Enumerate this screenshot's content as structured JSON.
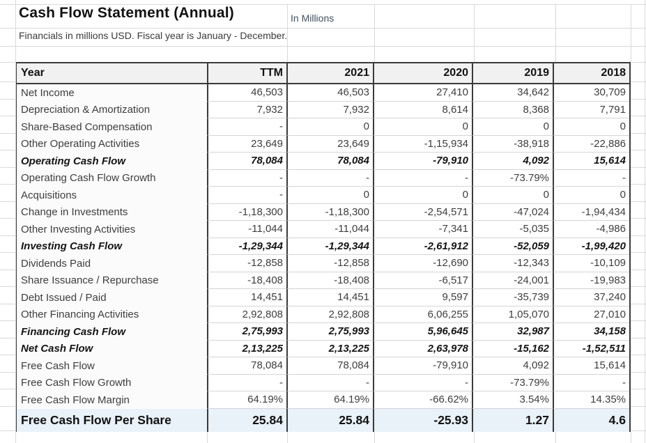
{
  "title": "Cash Flow Statement (Annual)",
  "unit_note": "In Millions",
  "subtitle": "Financials in millions USD. Fiscal year is January - December.",
  "colors": {
    "row_highlight": "#e9f1f9",
    "header_bg": "#f1f1f1",
    "grid_light": "#d9d9d9",
    "border_dark": "#3a3a3a"
  },
  "table": {
    "columns": [
      "Year",
      "TTM",
      "2021",
      "2020",
      "2019",
      "2018"
    ],
    "rows": [
      {
        "label": "Net Income",
        "style": "normal",
        "values": [
          "46,503",
          "46,503",
          "27,410",
          "34,642",
          "30,709"
        ]
      },
      {
        "label": "Depreciation & Amortization",
        "style": "normal",
        "values": [
          "7,932",
          "7,932",
          "8,614",
          "8,368",
          "7,791"
        ]
      },
      {
        "label": "Share-Based Compensation",
        "style": "normal",
        "values": [
          "-",
          "0",
          "0",
          "0",
          "0"
        ]
      },
      {
        "label": "Other Operating Activities",
        "style": "normal",
        "values": [
          "23,649",
          "23,649",
          "-1,15,934",
          "-38,918",
          "-22,886"
        ]
      },
      {
        "label": "Operating Cash Flow",
        "style": "summary",
        "values": [
          "78,084",
          "78,084",
          "-79,910",
          "4,092",
          "15,614"
        ]
      },
      {
        "label": "Operating Cash Flow Growth",
        "style": "normal",
        "values": [
          "-",
          "-",
          "-",
          "-73.79%",
          "-"
        ]
      },
      {
        "label": "Acquisitions",
        "style": "normal",
        "values": [
          "-",
          "0",
          "0",
          "0",
          "0"
        ]
      },
      {
        "label": "Change in Investments",
        "style": "normal",
        "values": [
          "-1,18,300",
          "-1,18,300",
          "-2,54,571",
          "-47,024",
          "-1,94,434"
        ]
      },
      {
        "label": "Other Investing Activities",
        "style": "normal",
        "values": [
          "-11,044",
          "-11,044",
          "-7,341",
          "-5,035",
          "-4,986"
        ]
      },
      {
        "label": "Investing Cash Flow",
        "style": "summary",
        "values": [
          "-1,29,344",
          "-1,29,344",
          "-2,61,912",
          "-52,059",
          "-1,99,420"
        ]
      },
      {
        "label": "Dividends Paid",
        "style": "normal",
        "values": [
          "-12,858",
          "-12,858",
          "-12,690",
          "-12,343",
          "-10,109"
        ]
      },
      {
        "label": "Share Issuance / Repurchase",
        "style": "normal",
        "values": [
          "-18,408",
          "-18,408",
          "-6,517",
          "-24,001",
          "-19,983"
        ]
      },
      {
        "label": "Debt Issued / Paid",
        "style": "normal",
        "values": [
          "14,451",
          "14,451",
          "9,597",
          "-35,739",
          "37,240"
        ]
      },
      {
        "label": "Other Financing Activities",
        "style": "normal",
        "values": [
          "2,92,808",
          "2,92,808",
          "6,06,255",
          "1,05,070",
          "27,010"
        ]
      },
      {
        "label": "Financing Cash Flow",
        "style": "summary",
        "values": [
          "2,75,993",
          "2,75,993",
          "5,96,645",
          "32,987",
          "34,158"
        ]
      },
      {
        "label": "Net Cash Flow",
        "style": "summary",
        "values": [
          "2,13,225",
          "2,13,225",
          "2,63,978",
          "-15,162",
          "-1,52,511"
        ]
      },
      {
        "label": "Free Cash Flow",
        "style": "normal",
        "values": [
          "78,084",
          "78,084",
          "-79,910",
          "4,092",
          "15,614"
        ]
      },
      {
        "label": "Free Cash Flow Growth",
        "style": "normal",
        "values": [
          "-",
          "-",
          "-",
          "-73.79%",
          "-"
        ]
      },
      {
        "label": "Free Cash Flow Margin",
        "style": "normal",
        "values": [
          "64.19%",
          "64.19%",
          "-66.62%",
          "3.54%",
          "14.35%"
        ]
      },
      {
        "label": "Free Cash Flow Per Share",
        "style": "highlight",
        "values": [
          "25.84",
          "25.84",
          "-25.93",
          "1.27",
          "4.6"
        ]
      }
    ]
  }
}
